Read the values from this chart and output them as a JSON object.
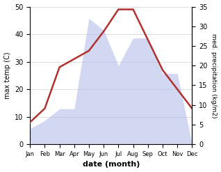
{
  "months": [
    "Jan",
    "Feb",
    "Mar",
    "Apr",
    "May",
    "Jun",
    "Jul",
    "Aug",
    "Sep",
    "Oct",
    "Nov",
    "Dec"
  ],
  "temperature": [
    8,
    13,
    28,
    31,
    34,
    41,
    49,
    49,
    38,
    27,
    20,
    13
  ],
  "precipitation": [
    4,
    6,
    9,
    9,
    32,
    29,
    20,
    27,
    27,
    18,
    18,
    0
  ],
  "temp_ylim": [
    0,
    50
  ],
  "precip_ylim": [
    0,
    35
  ],
  "temp_color": "#b03030",
  "precip_fill_color": "#b0b8e8",
  "precip_fill_alpha": 0.55,
  "xlabel": "date (month)",
  "ylabel_left": "max temp (C)",
  "ylabel_right": "med. precipitation (kg/m2)",
  "background_color": "#ffffff",
  "grid_color": "#d0d0d0"
}
